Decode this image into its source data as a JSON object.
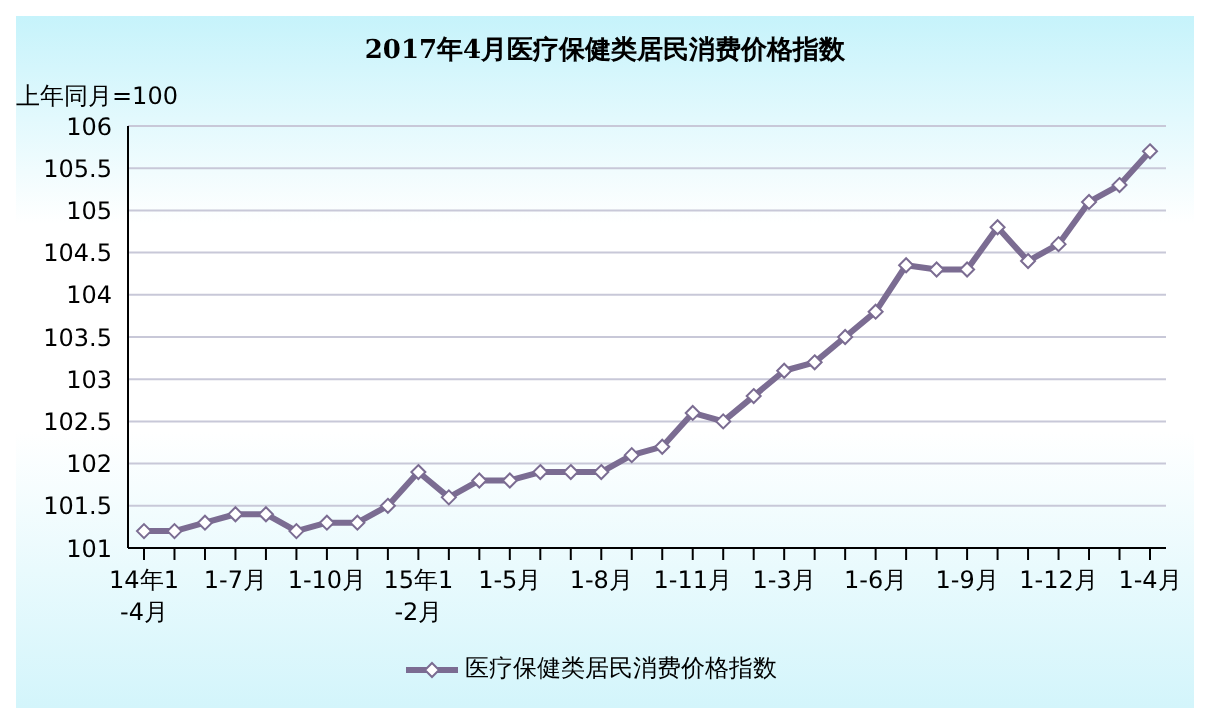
{
  "chart_data": {
    "type": "line",
    "title": "2017年4月医疗保健类居民消费价格指数",
    "ylabel": "上年同月=100",
    "categories": [
      "14年1-4月",
      null,
      null,
      "1-7月",
      null,
      null,
      "1-10月",
      null,
      null,
      "15年1-2月",
      null,
      null,
      "1-5月",
      null,
      null,
      "1-8月",
      null,
      null,
      "1-11月",
      null,
      null,
      "1-3月",
      null,
      null,
      "1-6月",
      null,
      null,
      "1-9月",
      null,
      null,
      "1-12月",
      null,
      null,
      "1-4月"
    ],
    "series": [
      {
        "name": "医疗保健类居民消费价格指数",
        "color": "#7b6c92",
        "values": [
          101.2,
          101.2,
          101.3,
          101.4,
          101.4,
          101.2,
          101.3,
          101.3,
          101.5,
          101.9,
          101.6,
          101.8,
          101.8,
          101.9,
          101.9,
          101.9,
          102.1,
          102.2,
          102.6,
          102.5,
          102.8,
          103.1,
          103.2,
          103.5,
          103.8,
          104.35,
          104.3,
          104.3,
          104.8,
          104.4,
          104.6,
          105.1,
          105.3,
          105.7
        ]
      }
    ],
    "ylim": [
      101,
      106
    ],
    "yticks": [
      101,
      101.5,
      102,
      102.5,
      103,
      103.5,
      104,
      104.5,
      105,
      105.5,
      106
    ],
    "grid": "y",
    "legend": "bottom",
    "marker": "diamond",
    "line_style": "solid"
  }
}
